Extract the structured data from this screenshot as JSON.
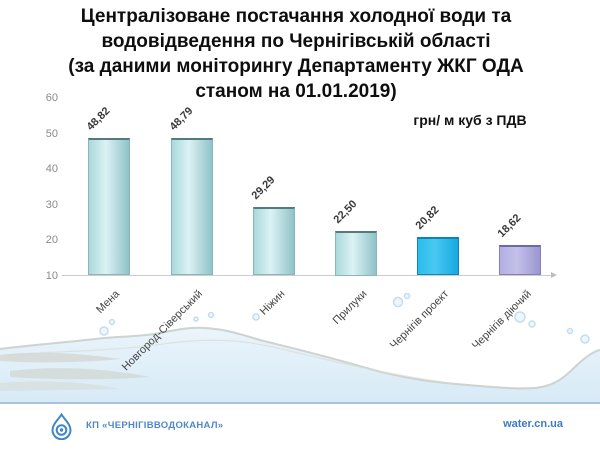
{
  "title": {
    "lines": [
      "Централізоване постачання холодної води та",
      "водовідведення по Чернігівській області",
      "(за даними моніторингу Департаменту ЖКГ ОДА",
      "станом на 01.01.2019)"
    ]
  },
  "chart_data": {
    "type": "bar",
    "title": "Централізоване постачання холодної води та водовідведення по Чернігівській області (за даними моніторингу Департаменту ЖКГ ОДА станом на 01.01.2019)",
    "unit": "грн/ м куб з ПДВ",
    "categories": [
      "Мена",
      "Новгород-Сіверський",
      "Ніжин",
      "Прилуки",
      "Чернігів проект",
      "Чернігів діючий"
    ],
    "values": [
      48.82,
      48.79,
      29.29,
      22.5,
      20.82,
      18.62
    ],
    "value_labels": [
      "48,82",
      "48,79",
      "29,29",
      "22,50",
      "20,82",
      "18,62"
    ],
    "ylim": [
      10,
      60
    ],
    "yticks": [
      10,
      20,
      30,
      40,
      50,
      60
    ],
    "grid": false,
    "legend": "none",
    "label_rotation_deg": -45,
    "bar_color_keys": [
      "teal",
      "teal",
      "teal",
      "teal",
      "cyan",
      "lavender"
    ],
    "palette": {
      "teal": {
        "left": "#a9d9dd",
        "mid": "#dcf2f4",
        "right": "#8fc3c9",
        "border": "#8ab5bb",
        "top": "#56797e"
      },
      "cyan": {
        "left": "#2cbcee",
        "mid": "#49c9f2",
        "right": "#17a8df",
        "border": "#1187b9",
        "top": "#0d84b4"
      },
      "lavender": {
        "left": "#b3afe1",
        "mid": "#c3c0e9",
        "right": "#9a96d0",
        "border": "#8480bb",
        "top": "#6d69a8"
      }
    }
  },
  "footer": {
    "company": "КП «ЧЕРНІГІВВОДОКАНАЛ»",
    "website": "water.cn.ua"
  },
  "colors": {
    "accent_blue": "#3d7bc1",
    "logo_blue": "#3e86c6",
    "divider": "#a6c3e0",
    "axis": "#cccccc",
    "tick_text": "#8a8a8a",
    "value_text": "#383838",
    "category_text": "#454545",
    "water_fill_top": "#eaf4fb",
    "water_fill_bottom": "#d7eaf6",
    "foam": "#c9cfca"
  }
}
